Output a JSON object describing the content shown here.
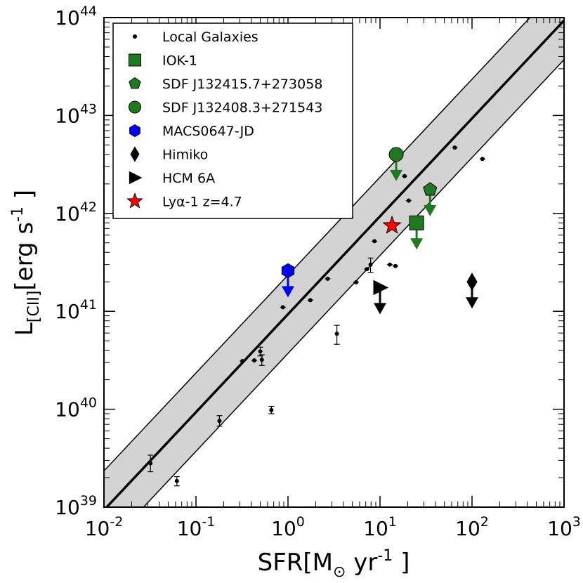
{
  "chart_data": {
    "type": "scatter",
    "xscale": "log",
    "yscale": "log",
    "xlim": [
      0.01,
      1000
    ],
    "ylim": [
      1e+39,
      1e+44
    ],
    "xlabel": {
      "main": "SFR[M",
      "sub": "⊙",
      "mid": " yr",
      "sup": "-1",
      "end": " ]"
    },
    "ylabel": {
      "main": "L",
      "sub": "[CII]",
      "mid": "[erg s",
      "sup": "-1",
      "end": " ]"
    },
    "xticks": [
      {
        "value": 0.01,
        "base": "10",
        "exp": "-2"
      },
      {
        "value": 0.1,
        "base": "10",
        "exp": "-1"
      },
      {
        "value": 1,
        "base": "10",
        "exp": "0"
      },
      {
        "value": 10,
        "base": "10",
        "exp": "1"
      },
      {
        "value": 100,
        "base": "10",
        "exp": "2"
      },
      {
        "value": 1000,
        "base": "10",
        "exp": "3"
      }
    ],
    "yticks": [
      {
        "value": 1e+39,
        "base": "10",
        "exp": "39"
      },
      {
        "value": 1e+40,
        "base": "10",
        "exp": "40"
      },
      {
        "value": 1e+41,
        "base": "10",
        "exp": "41"
      },
      {
        "value": 1e+42,
        "base": "10",
        "exp": "42"
      },
      {
        "value": 1e+43,
        "base": "10",
        "exp": "43"
      },
      {
        "value": 1e+44,
        "base": "10",
        "exp": "44"
      }
    ],
    "relation": {
      "slope": 1.0,
      "intercept_log": 40.97,
      "scatter_dex": 0.4,
      "band_color": "#d3d3d3"
    },
    "series": [
      {
        "name": "Local Galaxies",
        "marker": "dot",
        "color": "#000000",
        "points": [
          {
            "x": 0.032,
            "y": 2.8e+39,
            "yerr_lo": 2.3e+39,
            "yerr_hi": 3.4e+39
          },
          {
            "x": 0.062,
            "y": 1.85e+39,
            "yerr_lo": 1.65e+39,
            "yerr_hi": 2.05e+39
          },
          {
            "x": 0.18,
            "y": 7.6e+39,
            "yerr_lo": 6.7e+39,
            "yerr_hi": 8.6e+39
          },
          {
            "x": 0.32,
            "y": 3.1e+40
          },
          {
            "x": 0.43,
            "y": 3.15e+40
          },
          {
            "x": 0.5,
            "y": 3.9e+40,
            "yerr_lo": 3.5e+40,
            "yerr_hi": 4.3e+40
          },
          {
            "x": 0.52,
            "y": 3.2e+40,
            "yerr_lo": 2.8e+40,
            "yerr_hi": 3.6e+40
          },
          {
            "x": 0.66,
            "y": 9.8e+39,
            "yerr_lo": 9e+39,
            "yerr_hi": 1.07e+40
          },
          {
            "x": 0.88,
            "y": 1.1e+41
          },
          {
            "x": 1.75,
            "y": 1.3e+41
          },
          {
            "x": 2.7,
            "y": 2.15e+41
          },
          {
            "x": 3.4,
            "y": 5.9e+40,
            "yerr_lo": 4.6e+40,
            "yerr_hi": 7.2e+40
          },
          {
            "x": 5.5,
            "y": 1.98e+41
          },
          {
            "x": 7.2,
            "y": 2.7e+41
          },
          {
            "x": 7.9,
            "y": 3e+41,
            "yerr_lo": 2.5e+41,
            "yerr_hi": 3.5e+41
          },
          {
            "x": 8.7,
            "y": 5.2e+41
          },
          {
            "x": 12.8,
            "y": 3e+41
          },
          {
            "x": 14.7,
            "y": 2.9e+41
          },
          {
            "x": 18.5,
            "y": 2.4e+42
          },
          {
            "x": 20.5,
            "y": 1.35e+42
          },
          {
            "x": 65,
            "y": 4.7e+42
          },
          {
            "x": 130,
            "y": 3.6e+42
          }
        ]
      },
      {
        "name": "IOK-1",
        "marker": "square",
        "color": "#1f7a1f",
        "upper_limit": true,
        "points": [
          {
            "x": 25,
            "y": 8e+41
          }
        ]
      },
      {
        "name": "SDF J132415.7+273058",
        "marker": "pentagon",
        "color": "#1f7a1f",
        "upper_limit": true,
        "points": [
          {
            "x": 35,
            "y": 1.75e+42
          }
        ]
      },
      {
        "name": "SDF J132408.3+271543",
        "marker": "circle",
        "color": "#1f7a1f",
        "upper_limit": true,
        "points": [
          {
            "x": 15,
            "y": 4e+42
          }
        ]
      },
      {
        "name": "MACS0647-JD",
        "marker": "hexagon",
        "color": "#0000ff",
        "upper_limit": true,
        "points": [
          {
            "x": 1,
            "y": 2.6e+41
          }
        ]
      },
      {
        "name": "Himiko",
        "marker": "diamond",
        "color": "#000000",
        "upper_limit": true,
        "points": [
          {
            "x": 100,
            "y": 2e+41
          }
        ]
      },
      {
        "name": "HCM 6A",
        "marker": "triangle-right",
        "color": "#000000",
        "upper_limit": true,
        "points": [
          {
            "x": 10,
            "y": 1.75e+41
          }
        ]
      },
      {
        "name": "Lyα-1 z=4.7",
        "marker": "star",
        "color": "#ff0000",
        "upper_limit": false,
        "points": [
          {
            "x": 13.5,
            "y": 7.5e+41
          }
        ]
      }
    ],
    "legend": {
      "position": "top-left"
    }
  }
}
